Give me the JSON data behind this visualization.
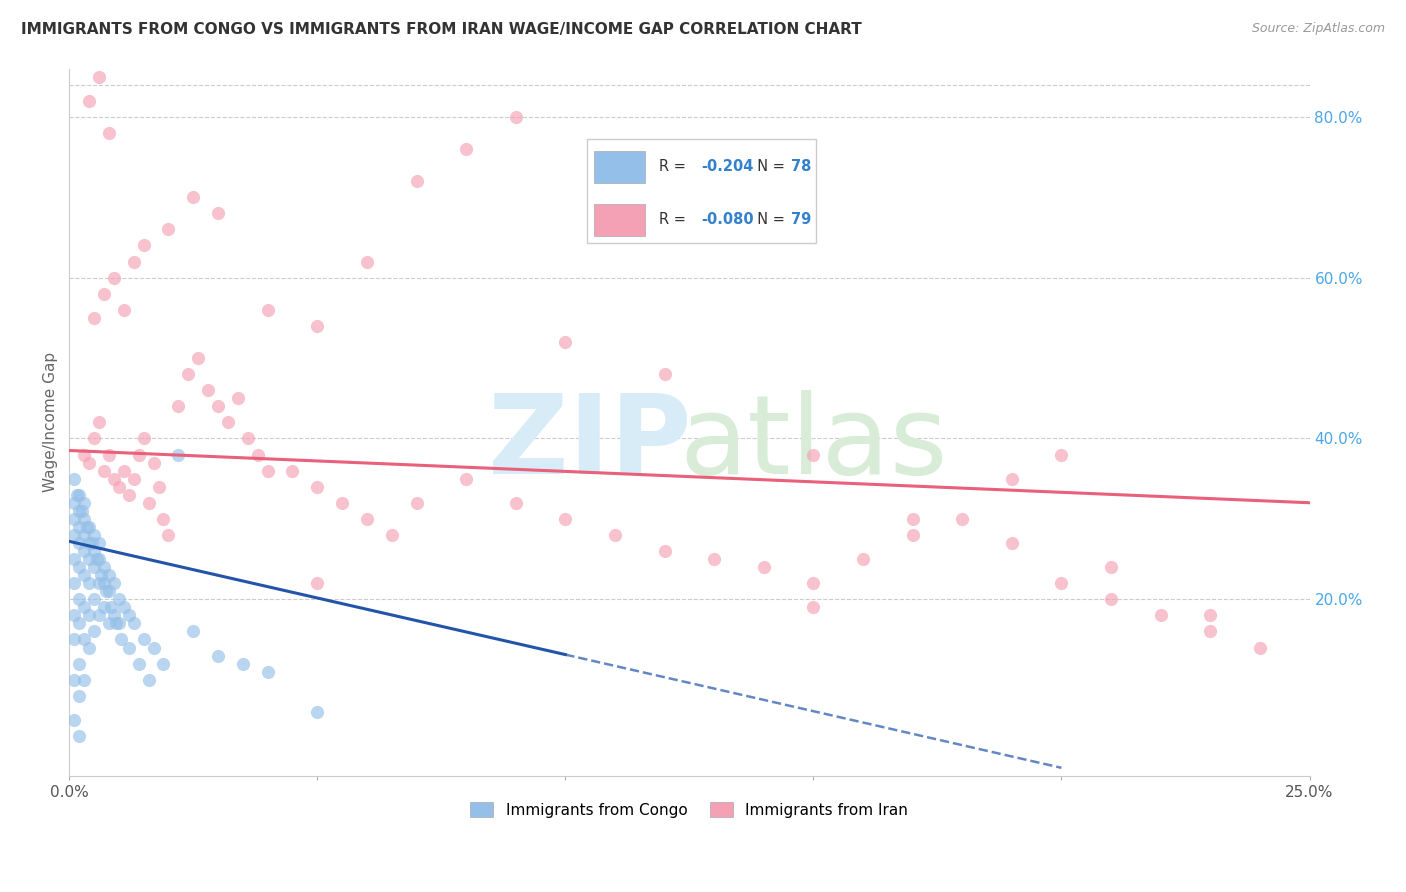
{
  "title": "IMMIGRANTS FROM CONGO VS IMMIGRANTS FROM IRAN WAGE/INCOME GAP CORRELATION CHART",
  "source": "Source: ZipAtlas.com",
  "ylabel": "Wage/Income Gap",
  "legend_label_congo": "Immigrants from Congo",
  "legend_label_iran": "Immigrants from Iran",
  "xlim": [
    0.0,
    0.25
  ],
  "ylim": [
    -0.02,
    0.86
  ],
  "yticks_right": [
    0.2,
    0.4,
    0.6,
    0.8
  ],
  "ytick_labels_right": [
    "20.0%",
    "40.0%",
    "60.0%",
    "80.0%"
  ],
  "color_congo": "#94bfe8",
  "color_iran": "#f4a0b5",
  "color_trend_congo": "#2255aa",
  "color_trend_iran": "#e8607a",
  "color_right_ticks": "#4da6e8",
  "color_RN_values": "#3380cc",
  "watermark_zip_color": "#d8ecf8",
  "watermark_atlas_color": "#d8ecd8",
  "congo_scatter_x": [
    0.001,
    0.001,
    0.001,
    0.001,
    0.001,
    0.001,
    0.001,
    0.001,
    0.001,
    0.001,
    0.002,
    0.002,
    0.002,
    0.002,
    0.002,
    0.002,
    0.002,
    0.002,
    0.002,
    0.002,
    0.003,
    0.003,
    0.003,
    0.003,
    0.003,
    0.003,
    0.003,
    0.003,
    0.004,
    0.004,
    0.004,
    0.004,
    0.004,
    0.004,
    0.005,
    0.005,
    0.005,
    0.005,
    0.005,
    0.006,
    0.006,
    0.006,
    0.006,
    0.007,
    0.007,
    0.007,
    0.008,
    0.008,
    0.008,
    0.009,
    0.009,
    0.01,
    0.01,
    0.011,
    0.012,
    0.013,
    0.015,
    0.017,
    0.019,
    0.022,
    0.025,
    0.03,
    0.035,
    0.04,
    0.05,
    0.0015,
    0.0025,
    0.0035,
    0.0045,
    0.0055,
    0.0065,
    0.0075,
    0.0085,
    0.0095,
    0.0105,
    0.012,
    0.014,
    0.016
  ],
  "congo_scatter_y": [
    0.28,
    0.3,
    0.25,
    0.22,
    0.32,
    0.35,
    0.18,
    0.15,
    0.1,
    0.05,
    0.29,
    0.31,
    0.27,
    0.24,
    0.33,
    0.2,
    0.17,
    0.12,
    0.08,
    0.03,
    0.28,
    0.3,
    0.26,
    0.23,
    0.32,
    0.19,
    0.15,
    0.1,
    0.27,
    0.29,
    0.25,
    0.22,
    0.18,
    0.14,
    0.26,
    0.28,
    0.24,
    0.2,
    0.16,
    0.25,
    0.27,
    0.22,
    0.18,
    0.24,
    0.22,
    0.19,
    0.23,
    0.21,
    0.17,
    0.22,
    0.18,
    0.2,
    0.17,
    0.19,
    0.18,
    0.17,
    0.15,
    0.14,
    0.12,
    0.38,
    0.16,
    0.13,
    0.12,
    0.11,
    0.06,
    0.33,
    0.31,
    0.29,
    0.27,
    0.25,
    0.23,
    0.21,
    0.19,
    0.17,
    0.15,
    0.14,
    0.12,
    0.1
  ],
  "iran_scatter_x": [
    0.003,
    0.004,
    0.005,
    0.006,
    0.007,
    0.008,
    0.009,
    0.01,
    0.011,
    0.012,
    0.013,
    0.014,
    0.015,
    0.016,
    0.017,
    0.018,
    0.019,
    0.02,
    0.022,
    0.024,
    0.026,
    0.028,
    0.03,
    0.032,
    0.034,
    0.036,
    0.038,
    0.04,
    0.045,
    0.05,
    0.055,
    0.06,
    0.065,
    0.07,
    0.08,
    0.09,
    0.1,
    0.11,
    0.12,
    0.13,
    0.14,
    0.15,
    0.16,
    0.17,
    0.18,
    0.19,
    0.2,
    0.21,
    0.22,
    0.23,
    0.24,
    0.005,
    0.007,
    0.009,
    0.011,
    0.013,
    0.015,
    0.02,
    0.025,
    0.03,
    0.04,
    0.05,
    0.06,
    0.07,
    0.08,
    0.09,
    0.1,
    0.11,
    0.12,
    0.15,
    0.17,
    0.19,
    0.21,
    0.23,
    0.004,
    0.006,
    0.008,
    0.05,
    0.15,
    0.2
  ],
  "iran_scatter_y": [
    0.38,
    0.37,
    0.4,
    0.42,
    0.36,
    0.38,
    0.35,
    0.34,
    0.36,
    0.33,
    0.35,
    0.38,
    0.4,
    0.32,
    0.37,
    0.34,
    0.3,
    0.28,
    0.44,
    0.48,
    0.5,
    0.46,
    0.44,
    0.42,
    0.45,
    0.4,
    0.38,
    0.36,
    0.36,
    0.34,
    0.32,
    0.3,
    0.28,
    0.32,
    0.35,
    0.32,
    0.3,
    0.28,
    0.26,
    0.25,
    0.24,
    0.22,
    0.25,
    0.28,
    0.3,
    0.27,
    0.22,
    0.24,
    0.18,
    0.16,
    0.14,
    0.55,
    0.58,
    0.6,
    0.56,
    0.62,
    0.64,
    0.66,
    0.7,
    0.68,
    0.56,
    0.54,
    0.62,
    0.72,
    0.76,
    0.8,
    0.52,
    0.75,
    0.48,
    0.38,
    0.3,
    0.35,
    0.2,
    0.18,
    0.82,
    0.85,
    0.78,
    0.22,
    0.19,
    0.38
  ]
}
